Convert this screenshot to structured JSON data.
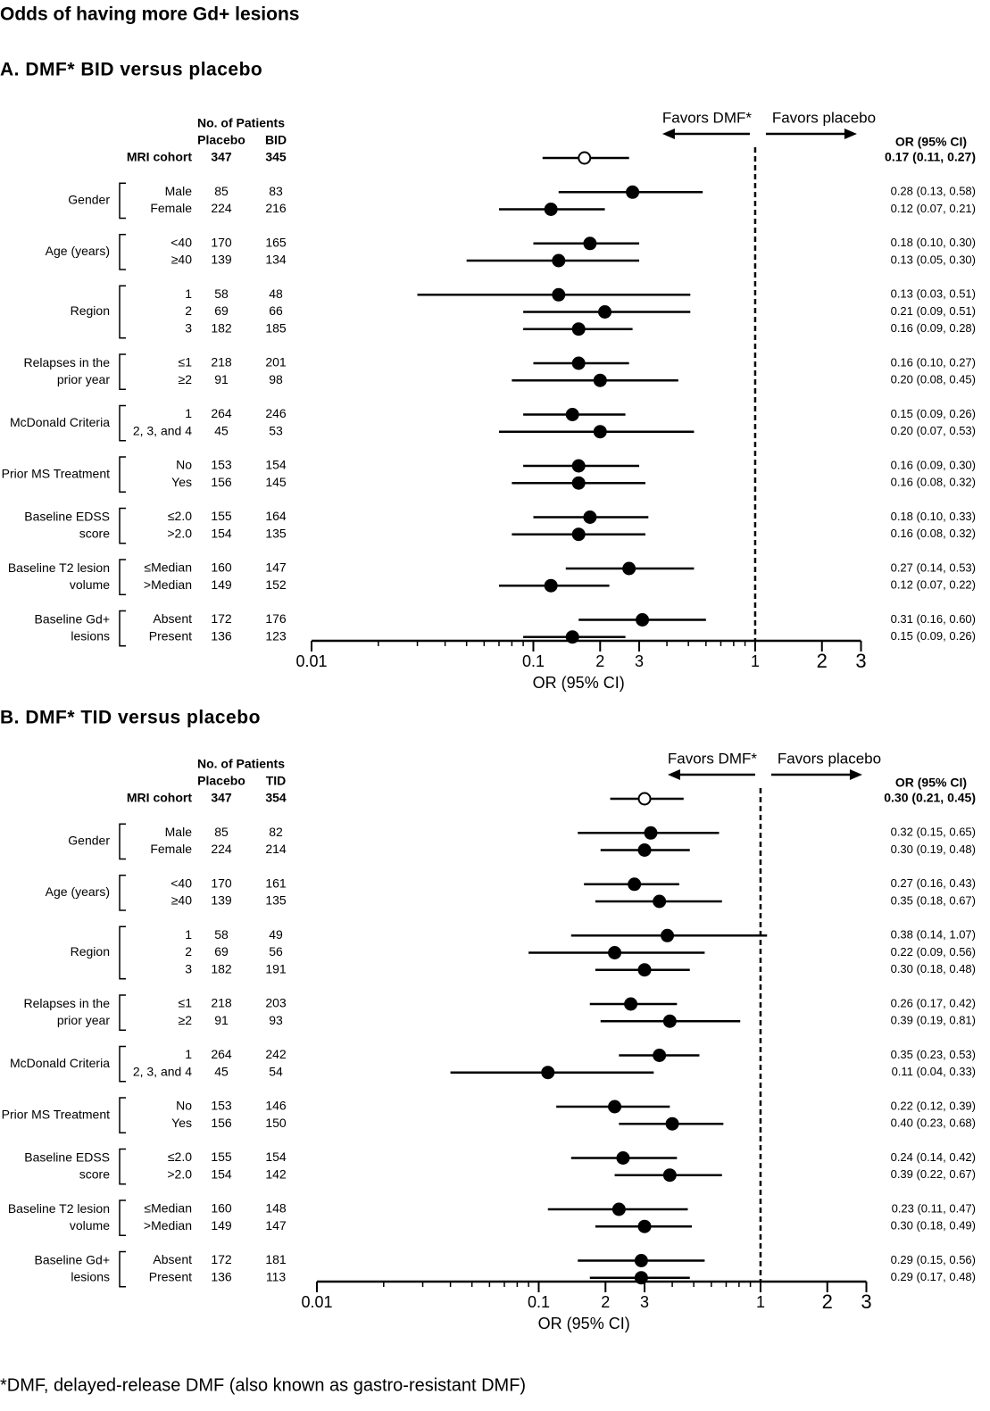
{
  "title": "Odds of having more Gd+ lesions",
  "footnote": "*DMF, delayed-release DMF (also known as gastro-resistant DMF)",
  "chart_data": [
    {
      "type": "forest",
      "title": "A. DMF* BID versus placebo",
      "patients_header": "No. of Patients",
      "columns": [
        "Placebo",
        "BID"
      ],
      "or_header": "OR (95% CI)",
      "favors": [
        "Favors DMF*",
        "Favors placebo"
      ],
      "xlabel": "OR (95% CI)",
      "xscale": "log",
      "xlim": [
        0.01,
        3
      ],
      "xticks": [
        0.01,
        0.1,
        {
          "value": 0.2,
          "label": "2"
        },
        {
          "value": 0.3,
          "label": "3"
        },
        1,
        2,
        3
      ],
      "minor_xticks": [
        0.02,
        0.03,
        0.04,
        0.05,
        0.06,
        0.07,
        0.08,
        0.09,
        0.4,
        0.5,
        0.6,
        0.7,
        0.8,
        0.9
      ],
      "reference": 1,
      "color": "#000000",
      "overall": {
        "label": "MRI cohort",
        "placebo": 347,
        "dmf": 345,
        "or": 0.17,
        "lo": 0.11,
        "hi": 0.27,
        "or_label": "0.17 (0.11, 0.27)"
      },
      "groups": [
        {
          "name": [
            "Gender"
          ],
          "rows": [
            {
              "label": "Male",
              "placebo": 85,
              "dmf": 83,
              "or": 0.28,
              "lo": 0.13,
              "hi": 0.58,
              "or_label": "0.28 (0.13, 0.58)"
            },
            {
              "label": "Female",
              "placebo": 224,
              "dmf": 216,
              "or": 0.12,
              "lo": 0.07,
              "hi": 0.21,
              "or_label": "0.12 (0.07, 0.21)"
            }
          ]
        },
        {
          "name": [
            "Age (years)"
          ],
          "rows": [
            {
              "label": "<40",
              "placebo": 170,
              "dmf": 165,
              "or": 0.18,
              "lo": 0.1,
              "hi": 0.3,
              "or_label": "0.18 (0.10, 0.30)"
            },
            {
              "label": "≥40",
              "placebo": 139,
              "dmf": 134,
              "or": 0.13,
              "lo": 0.05,
              "hi": 0.3,
              "or_label": "0.13 (0.05, 0.30)"
            }
          ]
        },
        {
          "name": [
            "Region"
          ],
          "rows": [
            {
              "label": "1",
              "placebo": 58,
              "dmf": 48,
              "or": 0.13,
              "lo": 0.03,
              "hi": 0.51,
              "or_label": "0.13 (0.03, 0.51)"
            },
            {
              "label": "2",
              "placebo": 69,
              "dmf": 66,
              "or": 0.21,
              "lo": 0.09,
              "hi": 0.51,
              "or_label": "0.21 (0.09, 0.51)"
            },
            {
              "label": "3",
              "placebo": 182,
              "dmf": 185,
              "or": 0.16,
              "lo": 0.09,
              "hi": 0.28,
              "or_label": "0.16 (0.09, 0.28)"
            }
          ]
        },
        {
          "name": [
            "Relapses in the",
            "prior year"
          ],
          "rows": [
            {
              "label": "≤1",
              "placebo": 218,
              "dmf": 201,
              "or": 0.16,
              "lo": 0.1,
              "hi": 0.27,
              "or_label": "0.16 (0.10, 0.27)"
            },
            {
              "label": "≥2",
              "placebo": 91,
              "dmf": 98,
              "or": 0.2,
              "lo": 0.08,
              "hi": 0.45,
              "or_label": "0.20 (0.08, 0.45)"
            }
          ]
        },
        {
          "name": [
            "McDonald Criteria"
          ],
          "rows": [
            {
              "label": "1",
              "placebo": 264,
              "dmf": 246,
              "or": 0.15,
              "lo": 0.09,
              "hi": 0.26,
              "or_label": "0.15 (0.09, 0.26)"
            },
            {
              "label": "2, 3, and 4",
              "placebo": 45,
              "dmf": 53,
              "or": 0.2,
              "lo": 0.07,
              "hi": 0.53,
              "or_label": "0.20 (0.07, 0.53)"
            }
          ]
        },
        {
          "name": [
            "Prior MS Treatment"
          ],
          "rows": [
            {
              "label": "No",
              "placebo": 153,
              "dmf": 154,
              "or": 0.16,
              "lo": 0.09,
              "hi": 0.3,
              "or_label": "0.16 (0.09, 0.30)"
            },
            {
              "label": "Yes",
              "placebo": 156,
              "dmf": 145,
              "or": 0.16,
              "lo": 0.08,
              "hi": 0.32,
              "or_label": "0.16 (0.08, 0.32)"
            }
          ]
        },
        {
          "name": [
            "Baseline EDSS",
            "score"
          ],
          "rows": [
            {
              "label": "≤2.0",
              "placebo": 155,
              "dmf": 164,
              "or": 0.18,
              "lo": 0.1,
              "hi": 0.33,
              "or_label": "0.18 (0.10, 0.33)"
            },
            {
              "label": ">2.0",
              "placebo": 154,
              "dmf": 135,
              "or": 0.16,
              "lo": 0.08,
              "hi": 0.32,
              "or_label": "0.16 (0.08, 0.32)"
            }
          ]
        },
        {
          "name": [
            "Baseline T2 lesion",
            "volume"
          ],
          "rows": [
            {
              "label": "≤Median",
              "placebo": 160,
              "dmf": 147,
              "or": 0.27,
              "lo": 0.14,
              "hi": 0.53,
              "or_label": "0.27 (0.14, 0.53)"
            },
            {
              "label": ">Median",
              "placebo": 149,
              "dmf": 152,
              "or": 0.12,
              "lo": 0.07,
              "hi": 0.22,
              "or_label": "0.12 (0.07, 0.22)"
            }
          ]
        },
        {
          "name": [
            "Baseline Gd+",
            "lesions"
          ],
          "rows": [
            {
              "label": "Absent",
              "placebo": 172,
              "dmf": 176,
              "or": 0.31,
              "lo": 0.16,
              "hi": 0.6,
              "or_label": "0.31 (0.16, 0.60)"
            },
            {
              "label": "Present",
              "placebo": 136,
              "dmf": 123,
              "or": 0.15,
              "lo": 0.09,
              "hi": 0.26,
              "or_label": "0.15 (0.09, 0.26)"
            }
          ]
        }
      ]
    },
    {
      "type": "forest",
      "title": "B. DMF* TID versus placebo",
      "patients_header": "No. of Patients",
      "columns": [
        "Placebo",
        "TID"
      ],
      "or_header": "OR (95% CI)",
      "favors": [
        "Favors DMF*",
        "Favors placebo"
      ],
      "xlabel": "OR (95% CI)",
      "xscale": "log",
      "xlim": [
        0.01,
        3
      ],
      "xticks": [
        0.01,
        0.1,
        {
          "value": 0.2,
          "label": "2"
        },
        {
          "value": 0.3,
          "label": "3"
        },
        1,
        2,
        3
      ],
      "minor_xticks": [
        0.02,
        0.03,
        0.04,
        0.05,
        0.06,
        0.07,
        0.08,
        0.09,
        0.4,
        0.5,
        0.6,
        0.7,
        0.8,
        0.9
      ],
      "reference": 1,
      "color": "#000000",
      "overall": {
        "label": "MRI cohort",
        "placebo": 347,
        "dmf": 354,
        "or": 0.3,
        "lo": 0.21,
        "hi": 0.45,
        "or_label": "0.30 (0.21, 0.45)"
      },
      "groups": [
        {
          "name": [
            "Gender"
          ],
          "rows": [
            {
              "label": "Male",
              "placebo": 85,
              "dmf": 82,
              "or": 0.32,
              "lo": 0.15,
              "hi": 0.65,
              "or_label": "0.32 (0.15, 0.65)"
            },
            {
              "label": "Female",
              "placebo": 224,
              "dmf": 214,
              "or": 0.3,
              "lo": 0.19,
              "hi": 0.48,
              "or_label": "0.30 (0.19, 0.48)"
            }
          ]
        },
        {
          "name": [
            "Age (years)"
          ],
          "rows": [
            {
              "label": "<40",
              "placebo": 170,
              "dmf": 161,
              "or": 0.27,
              "lo": 0.16,
              "hi": 0.43,
              "or_label": "0.27 (0.16, 0.43)"
            },
            {
              "label": "≥40",
              "placebo": 139,
              "dmf": 135,
              "or": 0.35,
              "lo": 0.18,
              "hi": 0.67,
              "or_label": "0.35 (0.18, 0.67)"
            }
          ]
        },
        {
          "name": [
            "Region"
          ],
          "rows": [
            {
              "label": "1",
              "placebo": 58,
              "dmf": 49,
              "or": 0.38,
              "lo": 0.14,
              "hi": 1.07,
              "or_label": "0.38 (0.14, 1.07)"
            },
            {
              "label": "2",
              "placebo": 69,
              "dmf": 56,
              "or": 0.22,
              "lo": 0.09,
              "hi": 0.56,
              "or_label": "0.22 (0.09, 0.56)"
            },
            {
              "label": "3",
              "placebo": 182,
              "dmf": 191,
              "or": 0.3,
              "lo": 0.18,
              "hi": 0.48,
              "or_label": "0.30 (0.18, 0.48)"
            }
          ]
        },
        {
          "name": [
            "Relapses in the",
            "prior year"
          ],
          "rows": [
            {
              "label": "≤1",
              "placebo": 218,
              "dmf": 203,
              "or": 0.26,
              "lo": 0.17,
              "hi": 0.42,
              "or_label": "0.26 (0.17, 0.42)"
            },
            {
              "label": "≥2",
              "placebo": 91,
              "dmf": 93,
              "or": 0.39,
              "lo": 0.19,
              "hi": 0.81,
              "or_label": "0.39 (0.19, 0.81)"
            }
          ]
        },
        {
          "name": [
            "McDonald Criteria"
          ],
          "rows": [
            {
              "label": "1",
              "placebo": 264,
              "dmf": 242,
              "or": 0.35,
              "lo": 0.23,
              "hi": 0.53,
              "or_label": "0.35 (0.23, 0.53)"
            },
            {
              "label": "2, 3, and 4",
              "placebo": 45,
              "dmf": 54,
              "or": 0.11,
              "lo": 0.04,
              "hi": 0.33,
              "or_label": "0.11 (0.04, 0.33)"
            }
          ]
        },
        {
          "name": [
            "Prior MS Treatment"
          ],
          "rows": [
            {
              "label": "No",
              "placebo": 153,
              "dmf": 146,
              "or": 0.22,
              "lo": 0.12,
              "hi": 0.39,
              "or_label": "0.22 (0.12, 0.39)"
            },
            {
              "label": "Yes",
              "placebo": 156,
              "dmf": 150,
              "or": 0.4,
              "lo": 0.23,
              "hi": 0.68,
              "or_label": "0.40 (0.23, 0.68)"
            }
          ]
        },
        {
          "name": [
            "Baseline EDSS",
            "score"
          ],
          "rows": [
            {
              "label": "≤2.0",
              "placebo": 155,
              "dmf": 154,
              "or": 0.24,
              "lo": 0.14,
              "hi": 0.42,
              "or_label": "0.24 (0.14, 0.42)"
            },
            {
              "label": ">2.0",
              "placebo": 154,
              "dmf": 142,
              "or": 0.39,
              "lo": 0.22,
              "hi": 0.67,
              "or_label": "0.39 (0.22, 0.67)"
            }
          ]
        },
        {
          "name": [
            "Baseline T2 lesion",
            "volume"
          ],
          "rows": [
            {
              "label": "≤Median",
              "placebo": 160,
              "dmf": 148,
              "or": 0.23,
              "lo": 0.11,
              "hi": 0.47,
              "or_label": "0.23 (0.11, 0.47)"
            },
            {
              "label": ">Median",
              "placebo": 149,
              "dmf": 147,
              "or": 0.3,
              "lo": 0.18,
              "hi": 0.49,
              "or_label": "0.30 (0.18, 0.49)"
            }
          ]
        },
        {
          "name": [
            "Baseline Gd+",
            "lesions"
          ],
          "rows": [
            {
              "label": "Absent",
              "placebo": 172,
              "dmf": 181,
              "or": 0.29,
              "lo": 0.15,
              "hi": 0.56,
              "or_label": "0.29 (0.15, 0.56)"
            },
            {
              "label": "Present",
              "placebo": 136,
              "dmf": 113,
              "or": 0.29,
              "lo": 0.17,
              "hi": 0.48,
              "or_label": "0.29 (0.17, 0.48)"
            }
          ]
        }
      ]
    }
  ]
}
